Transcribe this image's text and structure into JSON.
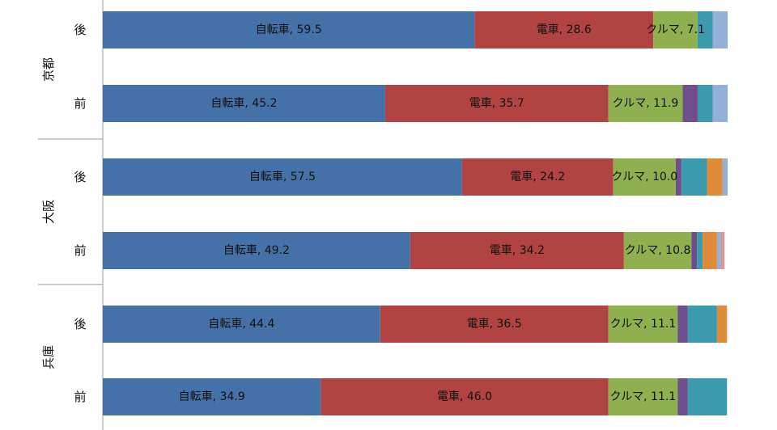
{
  "chart_data": {
    "type": "bar",
    "orientation": "horizontal",
    "stacked": true,
    "title": "",
    "xlabel": "",
    "ylabel": "",
    "xlim": [
      0,
      100
    ],
    "grid": false,
    "legend": "none",
    "groups": [
      {
        "name": "京都",
        "rows": [
          {
            "label": "後",
            "segments": [
              {
                "mode": "自転車",
                "value": 59.5,
                "color": "#4472a8",
                "show_label": true
              },
              {
                "mode": "電車",
                "value": 28.6,
                "color": "#b14442",
                "show_label": true
              },
              {
                "mode": "クルマ",
                "value": 7.1,
                "color": "#8fb04e",
                "show_label": true
              },
              {
                "mode": "other4",
                "value": 2.4,
                "color": "#3c9aae",
                "show_label": false
              },
              {
                "mode": "other6",
                "value": 2.4,
                "color": "#95b0d6",
                "show_label": false
              }
            ]
          },
          {
            "label": "前",
            "segments": [
              {
                "mode": "自転車",
                "value": 45.2,
                "color": "#4472a8",
                "show_label": true
              },
              {
                "mode": "電車",
                "value": 35.7,
                "color": "#b14442",
                "show_label": true
              },
              {
                "mode": "クルマ",
                "value": 11.9,
                "color": "#8fb04e",
                "show_label": true
              },
              {
                "mode": "other3",
                "value": 2.4,
                "color": "#6f4e8c",
                "show_label": false
              },
              {
                "mode": "other4",
                "value": 2.4,
                "color": "#3c9aae",
                "show_label": false
              },
              {
                "mode": "other6",
                "value": 2.4,
                "color": "#95b0d6",
                "show_label": false
              }
            ]
          }
        ]
      },
      {
        "name": "大阪",
        "rows": [
          {
            "label": "後",
            "segments": [
              {
                "mode": "自転車",
                "value": 57.5,
                "color": "#4472a8",
                "show_label": true
              },
              {
                "mode": "電車",
                "value": 24.2,
                "color": "#b14442",
                "show_label": true
              },
              {
                "mode": "クルマ",
                "value": 10.0,
                "color": "#8fb04e",
                "show_label": true
              },
              {
                "mode": "other3",
                "value": 0.9,
                "color": "#6f4e8c",
                "show_label": false
              },
              {
                "mode": "other4",
                "value": 4.1,
                "color": "#3c9aae",
                "show_label": false
              },
              {
                "mode": "other5",
                "value": 2.5,
                "color": "#e08b3a",
                "show_label": false
              },
              {
                "mode": "other6",
                "value": 0.8,
                "color": "#95b0d6",
                "show_label": false
              }
            ]
          },
          {
            "label": "前",
            "segments": [
              {
                "mode": "自転車",
                "value": 49.2,
                "color": "#4472a8",
                "show_label": true
              },
              {
                "mode": "電車",
                "value": 34.2,
                "color": "#b14442",
                "show_label": true
              },
              {
                "mode": "クルマ",
                "value": 10.8,
                "color": "#8fb04e",
                "show_label": true
              },
              {
                "mode": "other3",
                "value": 0.9,
                "color": "#6f4e8c",
                "show_label": false
              },
              {
                "mode": "other4",
                "value": 0.9,
                "color": "#3c9aae",
                "show_label": false
              },
              {
                "mode": "other5",
                "value": 2.3,
                "color": "#e08b3a",
                "show_label": false
              },
              {
                "mode": "other6",
                "value": 0.6,
                "color": "#95b0d6",
                "show_label": false
              },
              {
                "mode": "other7",
                "value": 0.6,
                "color": "#d99694",
                "show_label": false
              }
            ]
          }
        ]
      },
      {
        "name": "兵庫",
        "rows": [
          {
            "label": "後",
            "segments": [
              {
                "mode": "自転車",
                "value": 44.4,
                "color": "#4472a8",
                "show_label": true
              },
              {
                "mode": "電車",
                "value": 36.5,
                "color": "#b14442",
                "show_label": true
              },
              {
                "mode": "クルマ",
                "value": 11.1,
                "color": "#8fb04e",
                "show_label": true
              },
              {
                "mode": "other3",
                "value": 1.6,
                "color": "#6f4e8c",
                "show_label": false
              },
              {
                "mode": "other4",
                "value": 4.7,
                "color": "#3c9aae",
                "show_label": false
              },
              {
                "mode": "other5",
                "value": 1.6,
                "color": "#e08b3a",
                "show_label": false
              }
            ]
          },
          {
            "label": "前",
            "segments": [
              {
                "mode": "自転車",
                "value": 34.9,
                "color": "#4472a8",
                "show_label": true
              },
              {
                "mode": "電車",
                "value": 46.0,
                "color": "#b14442",
                "show_label": true
              },
              {
                "mode": "クルマ",
                "value": 11.1,
                "color": "#8fb04e",
                "show_label": true
              },
              {
                "mode": "other3",
                "value": 1.6,
                "color": "#6f4e8c",
                "show_label": false
              },
              {
                "mode": "other4",
                "value": 6.3,
                "color": "#3c9aae",
                "show_label": false
              }
            ]
          }
        ]
      }
    ]
  }
}
